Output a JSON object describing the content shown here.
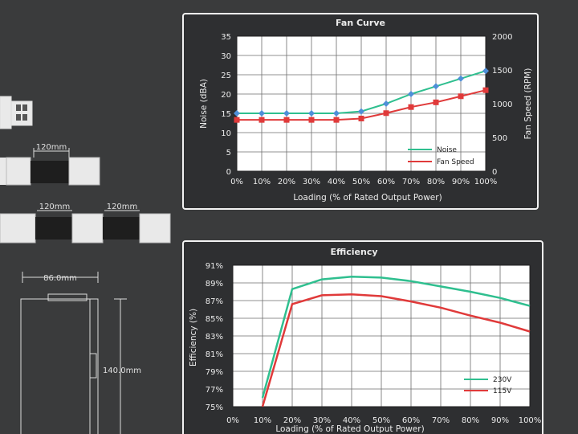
{
  "dimensions": {
    "cable_length_1": "120mm",
    "cable_length_2": "120mm",
    "cable_length_3": "120mm",
    "width": "86.0mm",
    "height": "140.0mm"
  },
  "colors": {
    "noise": "#2fbf8f",
    "noise_marker": "#4f8fd8",
    "fan_speed": "#e03a3a",
    "v230": "#2fbf8f",
    "v115": "#e03a3a"
  },
  "chart_data": [
    {
      "type": "line",
      "title": "Fan Curve",
      "xlabel": "Loading (% of Rated Output Power)",
      "ylabel": "Noise (dBA)",
      "y2label": "Fan Speed (RPM)",
      "categories": [
        "0%",
        "10%",
        "20%",
        "30%",
        "40%",
        "50%",
        "60%",
        "70%",
        "80%",
        "90%",
        "100%"
      ],
      "x": [
        0,
        10,
        20,
        30,
        40,
        50,
        60,
        70,
        80,
        90,
        100
      ],
      "ylim": [
        0,
        35
      ],
      "yticks": [
        0,
        5,
        10,
        15,
        20,
        25,
        30,
        35
      ],
      "y2lim": [
        0,
        2000
      ],
      "y2ticks": [
        0,
        500,
        1000,
        1500,
        2000
      ],
      "legend_position": "bottom-right",
      "grid": true,
      "series": [
        {
          "name": "Noise",
          "axis": "left",
          "values": [
            15,
            15,
            15,
            15,
            15,
            15.5,
            17.5,
            20,
            22,
            24,
            26
          ]
        },
        {
          "name": "Fan Speed",
          "axis": "right",
          "values": [
            760,
            760,
            760,
            760,
            760,
            780,
            860,
            950,
            1020,
            1110,
            1200
          ]
        }
      ]
    },
    {
      "type": "line",
      "title": "Efficiency",
      "xlabel": "Loading (% of Rated Output Power)",
      "ylabel": "Efficiency (%)",
      "categories": [
        "0%",
        "10%",
        "20%",
        "30%",
        "40%",
        "50%",
        "60%",
        "70%",
        "80%",
        "90%",
        "100%"
      ],
      "x": [
        10,
        20,
        30,
        40,
        50,
        60,
        70,
        80,
        90,
        100
      ],
      "ylim": [
        75,
        91
      ],
      "yticks": [
        "75%",
        "77%",
        "79%",
        "81%",
        "83%",
        "85%",
        "87%",
        "89%",
        "91%"
      ],
      "ytick_values": [
        75,
        77,
        79,
        81,
        83,
        85,
        87,
        89,
        91
      ],
      "legend_position": "bottom-right",
      "grid": true,
      "series": [
        {
          "name": "230V",
          "values": [
            76.0,
            88.3,
            89.4,
            89.7,
            89.6,
            89.2,
            88.6,
            88.0,
            87.3,
            86.4
          ]
        },
        {
          "name": "115V",
          "values": [
            75.0,
            86.6,
            87.6,
            87.7,
            87.5,
            86.9,
            86.2,
            85.3,
            84.5,
            83.5
          ]
        }
      ]
    }
  ]
}
